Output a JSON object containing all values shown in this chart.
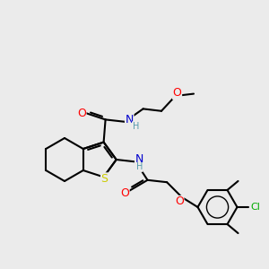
{
  "bg_color": "#ebebeb",
  "atom_colors": {
    "C": "#000000",
    "N": "#0000cd",
    "O": "#ff0000",
    "S": "#cccc00",
    "Cl": "#00aa00",
    "H": "#5599aa"
  },
  "bond_color": "#000000",
  "bond_lw": 1.5,
  "font_size": 8,
  "figsize": [
    3.0,
    3.0
  ],
  "dpi": 100
}
